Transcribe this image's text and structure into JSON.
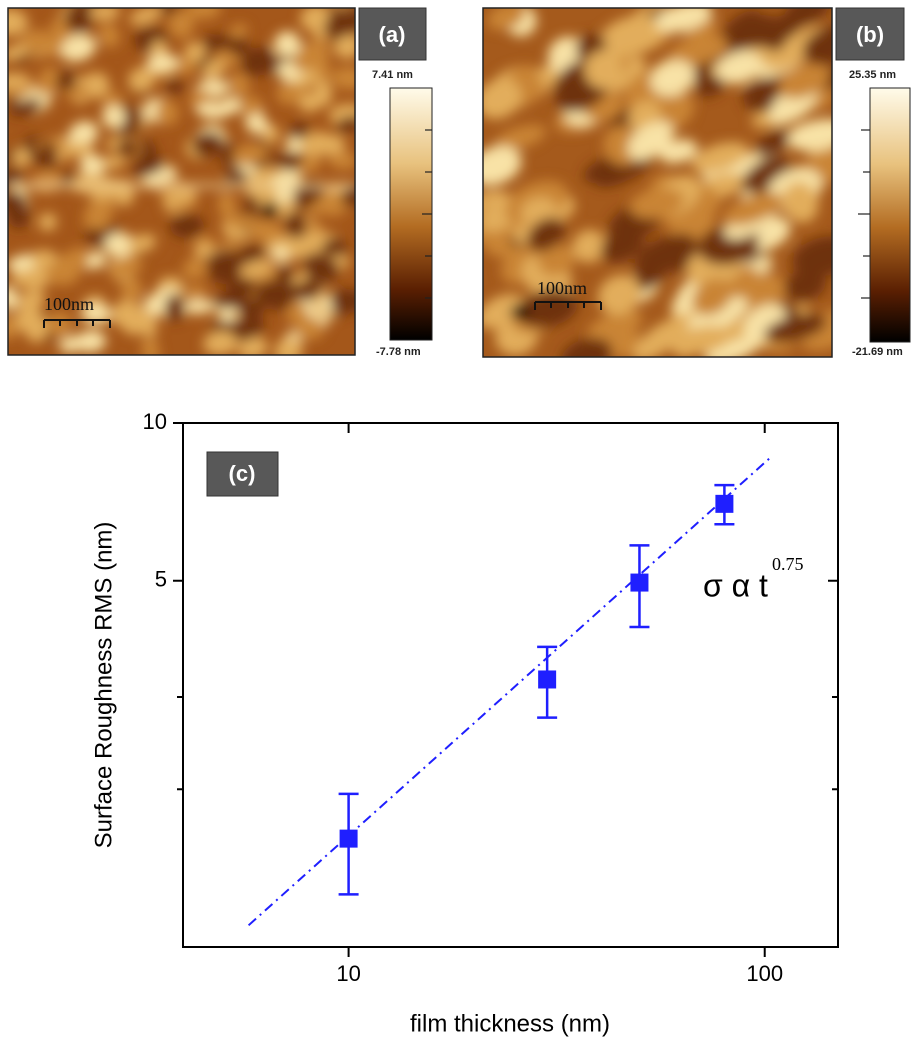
{
  "afm_images": [
    {
      "panel": "(a)",
      "max_label": "7.41 nm",
      "min_label": "-7.78 nm",
      "scale_bar": "100nm"
    },
    {
      "panel": "(b)",
      "max_label": "25.35 nm",
      "min_label": "-21.69 nm",
      "scale_bar": "100nm"
    }
  ],
  "chart_data": {
    "type": "scatter",
    "panel": "(c)",
    "x_label": "film thickness (nm)",
    "y_label": "Surface Roughness RMS (nm)",
    "x": [
      10,
      30,
      50,
      80
    ],
    "values": [
      1.61,
      3.24,
      4.96,
      7.01
    ],
    "errors": [
      0.35,
      0.5,
      0.88,
      0.6
    ],
    "color": "#1f1fff",
    "fit": {
      "x": [
        5.75,
        103
      ],
      "values": [
        1.1,
        8.58
      ]
    },
    "annotation": {
      "text": "σ α t",
      "exponent": "0.75"
    },
    "xlim": [
      4,
      150
    ],
    "ylim": [
      1,
      10
    ],
    "xticks": [
      10,
      100
    ],
    "yticks": [
      5,
      10
    ],
    "minor_yticks": [
      2,
      3
    ],
    "log_x": true,
    "log_y": true
  }
}
